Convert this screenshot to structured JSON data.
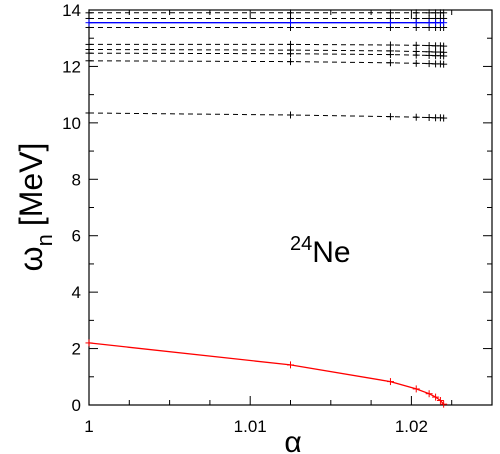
{
  "chart_data": {
    "type": "line",
    "xlabel": "α",
    "ylabel_main": "ω",
    "ylabel_sub": "n",
    "ylabel_unit": "[MeV]",
    "xlim": [
      1.0,
      1.025
    ],
    "ylim": [
      0,
      14
    ],
    "x_ticks": [
      1.0,
      1.01,
      1.02
    ],
    "x_tick_labels": [
      "1",
      "1.01",
      "1.02"
    ],
    "x_minor_step": 0.0025,
    "y_ticks": [
      0,
      2,
      4,
      6,
      8,
      10,
      12,
      14
    ],
    "y_tick_labels": [
      "0",
      "2",
      "4",
      "6",
      "8",
      "10",
      "12",
      "14"
    ],
    "y_minor_step": 1,
    "grid": false,
    "annotation": {
      "mass_number": "24",
      "element": "Ne"
    },
    "series": [
      {
        "color": "#000000",
        "style": "dashed",
        "marker": "plus",
        "x": [
          1.0,
          1.0125,
          1.0187,
          1.0203,
          1.0211,
          1.0215,
          1.0218,
          1.022
        ],
        "y": [
          13.9,
          13.9,
          13.9,
          13.9,
          13.9,
          13.9,
          13.9,
          13.9
        ]
      },
      {
        "color": "#000000",
        "style": "dashed",
        "marker": "plus",
        "x": [
          1.0,
          1.0125,
          1.0187,
          1.0203,
          1.0211,
          1.0215,
          1.0218,
          1.022
        ],
        "y": [
          13.7,
          13.7,
          13.7,
          13.7,
          13.7,
          13.7,
          13.7,
          13.7
        ]
      },
      {
        "color": "#000000",
        "style": "dashed",
        "marker": "plus",
        "x": [
          1.0,
          1.0125,
          1.0187,
          1.0203,
          1.0211,
          1.0215,
          1.0218,
          1.022
        ],
        "y": [
          13.38,
          13.38,
          13.38,
          13.38,
          13.38,
          13.38,
          13.38,
          13.38
        ]
      },
      {
        "color": "#000000",
        "style": "dashed",
        "marker": "plus",
        "x": [
          1.0,
          1.0125,
          1.0187,
          1.0203,
          1.0211,
          1.0215,
          1.0218,
          1.022
        ],
        "y": [
          12.78,
          12.78,
          12.76,
          12.75,
          12.74,
          12.73,
          12.73,
          12.72
        ]
      },
      {
        "color": "#000000",
        "style": "dashed",
        "marker": "plus",
        "x": [
          1.0,
          1.0125,
          1.0187,
          1.0203,
          1.0211,
          1.0215,
          1.0218,
          1.022
        ],
        "y": [
          12.6,
          12.58,
          12.55,
          12.53,
          12.52,
          12.51,
          12.51,
          12.5
        ]
      },
      {
        "color": "#000000",
        "style": "dashed",
        "marker": "plus",
        "x": [
          1.0,
          1.0125,
          1.0187,
          1.0203,
          1.0211,
          1.0215,
          1.0218,
          1.022
        ],
        "y": [
          12.47,
          12.45,
          12.42,
          12.4,
          12.39,
          12.38,
          12.38,
          12.37
        ]
      },
      {
        "color": "#000000",
        "style": "dashed",
        "marker": "plus",
        "x": [
          1.0,
          1.0125,
          1.0187,
          1.0203,
          1.0211,
          1.0215,
          1.0218,
          1.022
        ],
        "y": [
          12.2,
          12.17,
          12.13,
          12.11,
          12.1,
          12.09,
          12.09,
          12.08
        ]
      },
      {
        "color": "#000000",
        "style": "dashed",
        "marker": "plus",
        "x": [
          1.0,
          1.0125,
          1.0187,
          1.0203,
          1.0211,
          1.0215,
          1.0218,
          1.022
        ],
        "y": [
          10.35,
          10.28,
          10.22,
          10.2,
          10.19,
          10.18,
          10.18,
          10.17
        ]
      },
      {
        "color": "#0000ff",
        "style": "solid",
        "marker": "plus",
        "x": [
          1.0,
          1.0125,
          1.0187,
          1.0203,
          1.0211,
          1.0215,
          1.0218,
          1.022
        ],
        "y": [
          13.55,
          13.55,
          13.55,
          13.55,
          13.55,
          13.55,
          13.55,
          13.55
        ]
      },
      {
        "color": "#ff0000",
        "style": "solid",
        "marker": "plus",
        "x": [
          1.0,
          1.0125,
          1.0187,
          1.0203,
          1.0211,
          1.0215,
          1.0218,
          1.022
        ],
        "y": [
          2.2,
          1.42,
          0.83,
          0.57,
          0.4,
          0.28,
          0.16,
          0.03
        ]
      }
    ]
  }
}
